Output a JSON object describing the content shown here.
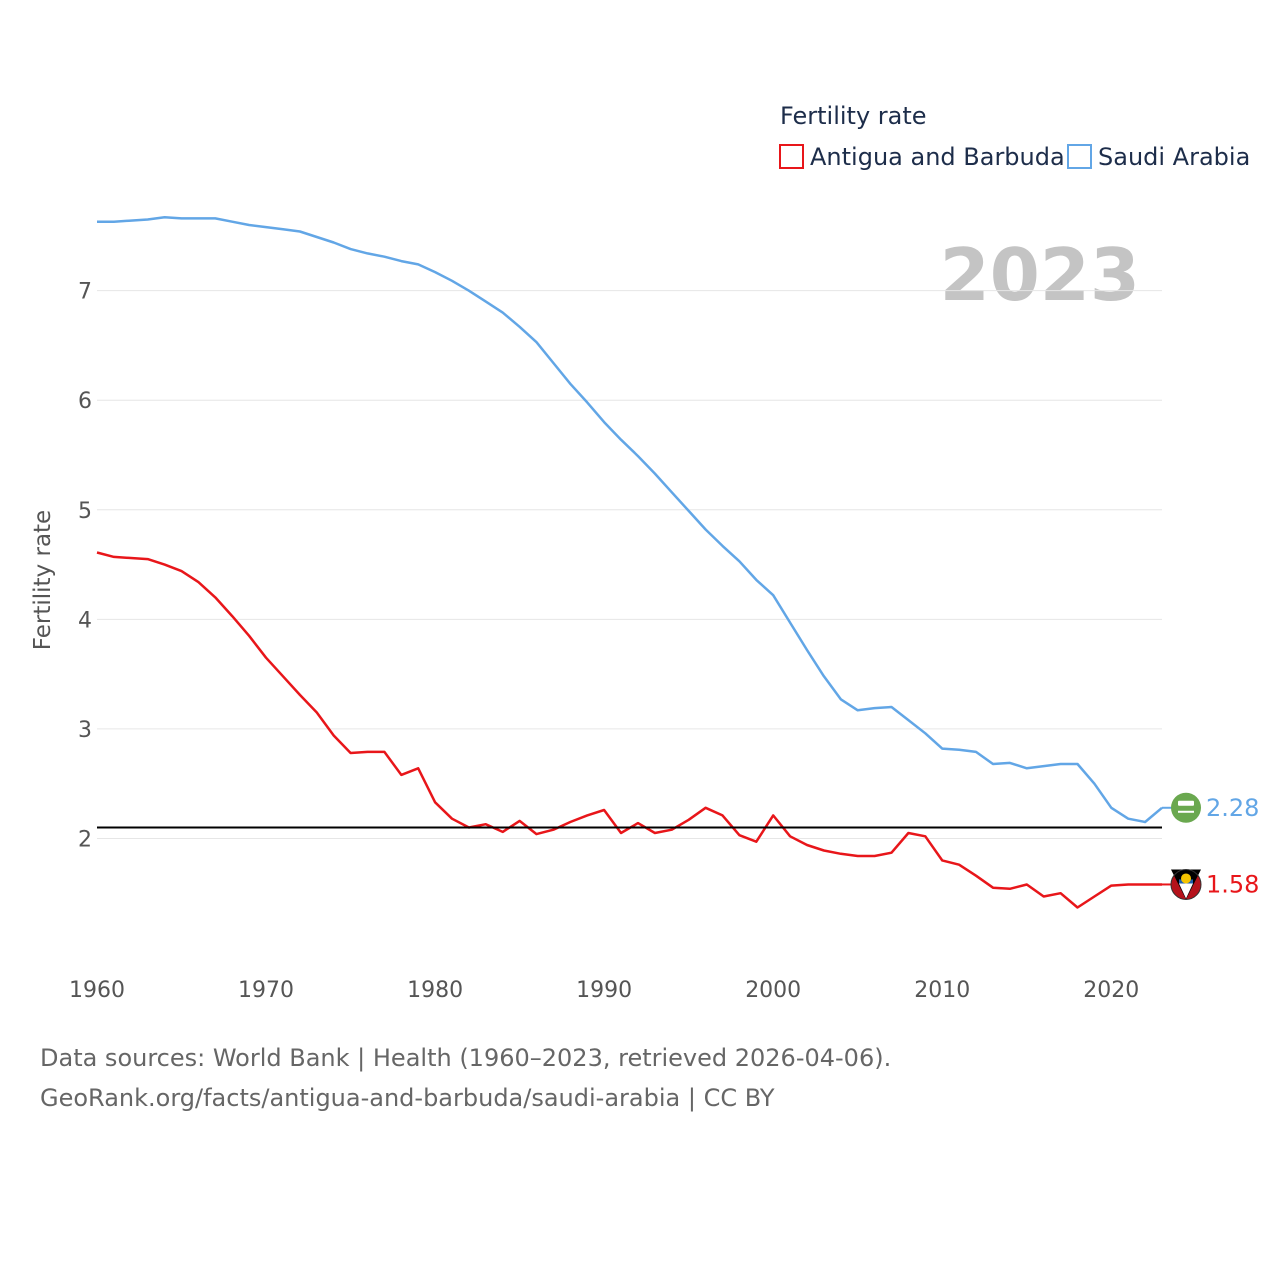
{
  "chart_data": {
    "type": "line",
    "year_label": "2023",
    "ylabel": "Fertility rate",
    "legend": {
      "title": "Fertility rate"
    },
    "xlim": [
      1960,
      2023
    ],
    "ylim": [
      1,
      7.7
    ],
    "yticks": [
      2,
      3,
      4,
      5,
      6,
      7
    ],
    "xticks": [
      1960,
      1970,
      1980,
      1990,
      2000,
      2010,
      2020
    ],
    "reference_line": 2.1,
    "x": [
      1960,
      1961,
      1962,
      1963,
      1964,
      1965,
      1966,
      1967,
      1968,
      1969,
      1970,
      1971,
      1972,
      1973,
      1974,
      1975,
      1976,
      1977,
      1978,
      1979,
      1980,
      1981,
      1982,
      1983,
      1984,
      1985,
      1986,
      1987,
      1988,
      1989,
      1990,
      1991,
      1992,
      1993,
      1994,
      1995,
      1996,
      1997,
      1998,
      1999,
      2000,
      2001,
      2002,
      2003,
      2004,
      2005,
      2006,
      2007,
      2008,
      2009,
      2010,
      2011,
      2012,
      2013,
      2014,
      2015,
      2016,
      2017,
      2018,
      2019,
      2020,
      2021,
      2022,
      2023
    ],
    "series": [
      {
        "name": "Antigua and Barbuda",
        "color": "#e8161a",
        "end_label": "1.58",
        "flag": "antigua-and-barbuda-flag-icon",
        "values": [
          4.61,
          4.57,
          4.56,
          4.55,
          4.5,
          4.44,
          4.34,
          4.2,
          4.03,
          3.85,
          3.65,
          3.48,
          3.31,
          3.15,
          2.94,
          2.78,
          2.79,
          2.79,
          2.58,
          2.64,
          2.33,
          2.18,
          2.1,
          2.13,
          2.06,
          2.16,
          2.04,
          2.08,
          2.15,
          2.21,
          2.26,
          2.05,
          2.14,
          2.05,
          2.08,
          2.17,
          2.28,
          2.21,
          2.03,
          1.97,
          2.21,
          2.02,
          1.94,
          1.89,
          1.86,
          1.84,
          1.84,
          1.87,
          2.05,
          2.02,
          1.8,
          1.76,
          1.66,
          1.55,
          1.54,
          1.58,
          1.47,
          1.5,
          1.37,
          1.47,
          1.57,
          1.58,
          1.58,
          1.58
        ]
      },
      {
        "name": "Saudi Arabia",
        "color": "#62a6e6",
        "end_label": "2.28",
        "flag": "saudi-arabia-flag-icon",
        "values": [
          7.63,
          7.63,
          7.64,
          7.65,
          7.67,
          7.66,
          7.66,
          7.66,
          7.63,
          7.6,
          7.58,
          7.56,
          7.54,
          7.49,
          7.44,
          7.38,
          7.34,
          7.31,
          7.27,
          7.24,
          7.17,
          7.09,
          7.0,
          6.9,
          6.8,
          6.67,
          6.53,
          6.34,
          6.15,
          5.98,
          5.8,
          5.64,
          5.49,
          5.33,
          5.16,
          4.99,
          4.82,
          4.67,
          4.53,
          4.36,
          4.22,
          3.97,
          3.72,
          3.48,
          3.27,
          3.17,
          3.19,
          3.2,
          3.08,
          2.96,
          2.82,
          2.81,
          2.79,
          2.68,
          2.69,
          2.64,
          2.66,
          2.68,
          2.68,
          2.5,
          2.28,
          2.18,
          2.15,
          2.28
        ]
      }
    ]
  },
  "footer": {
    "line1": "Data sources: World Bank | Health (1960–2023, retrieved 2026-04-06).",
    "line2": "GeoRank.org/facts/antigua-and-barbuda/saudi-arabia | CC BY"
  }
}
